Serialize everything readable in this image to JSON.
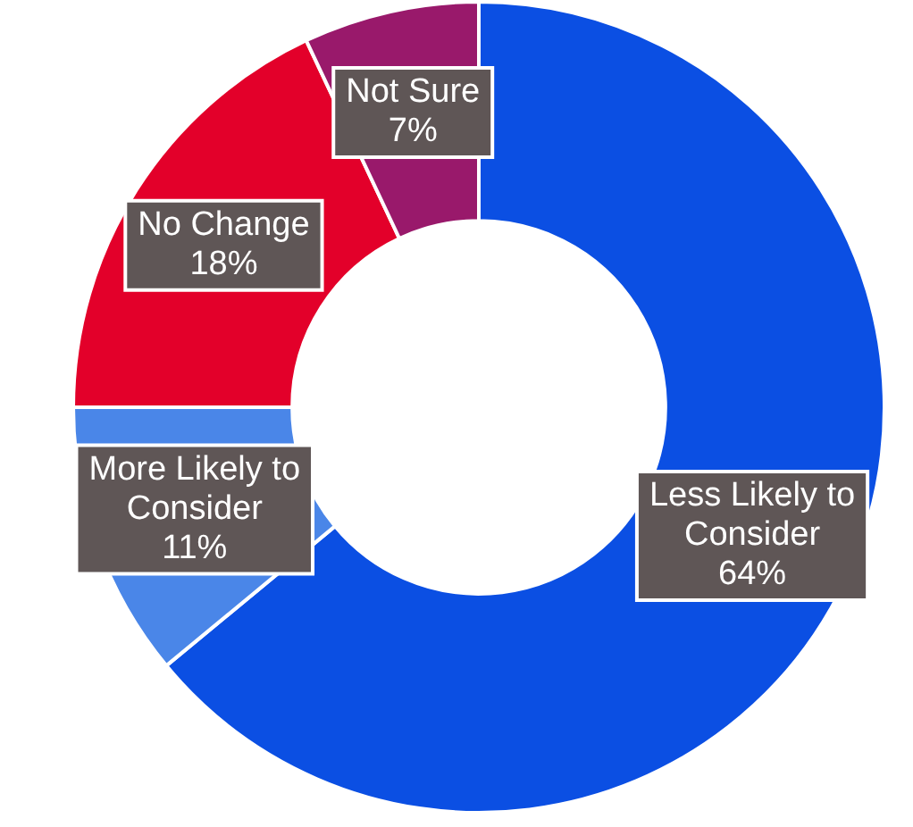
{
  "chart_data": {
    "type": "donut",
    "categories": [
      "Less Likely to Consider",
      "More Likely to Consider",
      "No Change",
      "Not Sure"
    ],
    "values": [
      64,
      11,
      18,
      7
    ],
    "colors": [
      "#0b4fe3",
      "#4a86e8",
      "#e3002a",
      "#99196b"
    ],
    "value_labels": [
      "64%",
      "11%",
      "18%",
      "7%"
    ],
    "legend": false
  }
}
